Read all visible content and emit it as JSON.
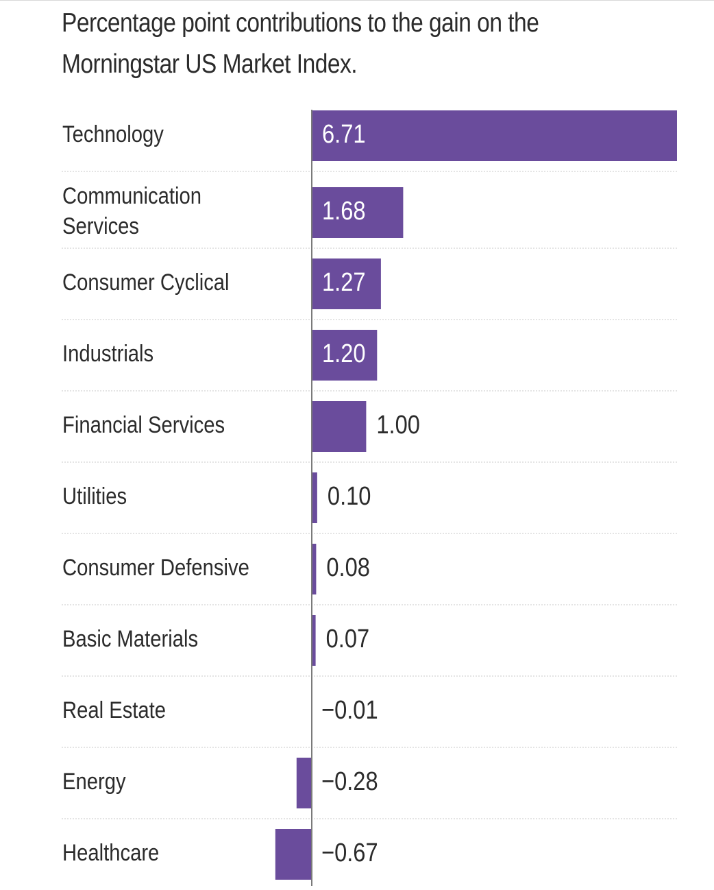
{
  "title": "Percentage point contributions to the gain on the Morningstar US Market Index.",
  "colors": {
    "bar": "#6a4c9c",
    "text": "#2b2b2b",
    "label_on_bar": "#ffffff",
    "axis": "#7a7a7a",
    "divider": "#c8c8c8"
  },
  "chart_data": {
    "type": "bar",
    "orientation": "horizontal",
    "title": "Percentage point contributions to the gain on the Morningstar US Market Index.",
    "xlabel": "",
    "ylabel": "",
    "xlim": [
      -0.67,
      6.71
    ],
    "categories": [
      [
        "Technology"
      ],
      [
        "Communication",
        "Services"
      ],
      [
        "Consumer Cyclical"
      ],
      [
        "Industrials"
      ],
      [
        "Financial Services"
      ],
      [
        "Utilities"
      ],
      [
        "Consumer Defensive"
      ],
      [
        "Basic Materials"
      ],
      [
        "Real Estate"
      ],
      [
        "Energy"
      ],
      [
        "Healthcare"
      ]
    ],
    "values": [
      6.71,
      1.68,
      1.27,
      1.2,
      1.0,
      0.1,
      0.08,
      0.07,
      -0.01,
      -0.28,
      -0.67
    ],
    "value_labels": [
      "6.71",
      "1.68",
      "1.27",
      "1.20",
      "1.00",
      "0.10",
      "0.08",
      "0.07",
      "−0.01",
      "−0.28",
      "−0.67"
    ]
  }
}
